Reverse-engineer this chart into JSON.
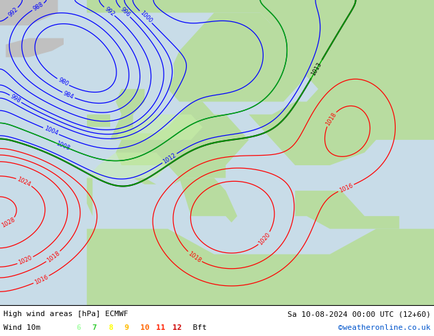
{
  "title_left": "High wind areas [hPa] ECMWF",
  "title_right": "Sa 10-08-2024 00:00 UTC (12+60)",
  "label_left": "Wind 10m",
  "legend_values": [
    "6",
    "7",
    "8",
    "9",
    "10",
    "11",
    "12"
  ],
  "legend_colors": [
    "#aaffaa",
    "#33cc33",
    "#ffff00",
    "#ffbb00",
    "#ff6600",
    "#ff2200",
    "#cc0000"
  ],
  "legend_suffix": " Bft",
  "copyright": "©weatheronline.co.uk",
  "figsize": [
    6.34,
    4.9
  ],
  "dpi": 100,
  "bottom_bar_height": 0.092,
  "map_bg_gray": "#d8d8d8",
  "sea_color": "#c8dce8",
  "land_green": "#b8dca0",
  "land_green_bright": "#c8f0a8",
  "font_size_label": 8.0
}
